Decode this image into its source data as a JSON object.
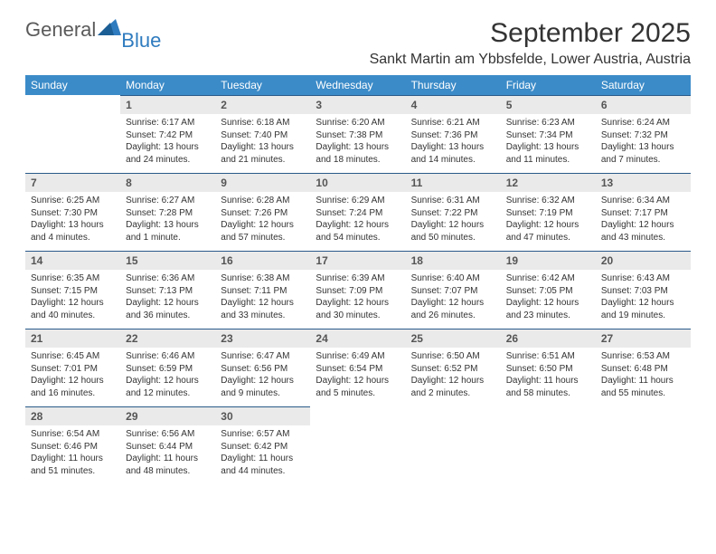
{
  "brand": {
    "general": "General",
    "blue": "Blue"
  },
  "title": "September 2025",
  "location": "Sankt Martin am Ybbsfelde, Lower Austria, Austria",
  "colors": {
    "header_bg": "#3b8bc8",
    "header_text": "#ffffff",
    "daynum_bg": "#eaeaea",
    "daynum_border": "#2a5a8a",
    "brand_gray": "#5a5a5a",
    "brand_blue": "#2f7bbf",
    "page_bg": "#ffffff"
  },
  "day_names": [
    "Sunday",
    "Monday",
    "Tuesday",
    "Wednesday",
    "Thursday",
    "Friday",
    "Saturday"
  ],
  "weeks": [
    [
      {
        "n": "",
        "sr": "",
        "ss": "",
        "dl": ""
      },
      {
        "n": "1",
        "sr": "Sunrise: 6:17 AM",
        "ss": "Sunset: 7:42 PM",
        "dl": "Daylight: 13 hours and 24 minutes."
      },
      {
        "n": "2",
        "sr": "Sunrise: 6:18 AM",
        "ss": "Sunset: 7:40 PM",
        "dl": "Daylight: 13 hours and 21 minutes."
      },
      {
        "n": "3",
        "sr": "Sunrise: 6:20 AM",
        "ss": "Sunset: 7:38 PM",
        "dl": "Daylight: 13 hours and 18 minutes."
      },
      {
        "n": "4",
        "sr": "Sunrise: 6:21 AM",
        "ss": "Sunset: 7:36 PM",
        "dl": "Daylight: 13 hours and 14 minutes."
      },
      {
        "n": "5",
        "sr": "Sunrise: 6:23 AM",
        "ss": "Sunset: 7:34 PM",
        "dl": "Daylight: 13 hours and 11 minutes."
      },
      {
        "n": "6",
        "sr": "Sunrise: 6:24 AM",
        "ss": "Sunset: 7:32 PM",
        "dl": "Daylight: 13 hours and 7 minutes."
      }
    ],
    [
      {
        "n": "7",
        "sr": "Sunrise: 6:25 AM",
        "ss": "Sunset: 7:30 PM",
        "dl": "Daylight: 13 hours and 4 minutes."
      },
      {
        "n": "8",
        "sr": "Sunrise: 6:27 AM",
        "ss": "Sunset: 7:28 PM",
        "dl": "Daylight: 13 hours and 1 minute."
      },
      {
        "n": "9",
        "sr": "Sunrise: 6:28 AM",
        "ss": "Sunset: 7:26 PM",
        "dl": "Daylight: 12 hours and 57 minutes."
      },
      {
        "n": "10",
        "sr": "Sunrise: 6:29 AM",
        "ss": "Sunset: 7:24 PM",
        "dl": "Daylight: 12 hours and 54 minutes."
      },
      {
        "n": "11",
        "sr": "Sunrise: 6:31 AM",
        "ss": "Sunset: 7:22 PM",
        "dl": "Daylight: 12 hours and 50 minutes."
      },
      {
        "n": "12",
        "sr": "Sunrise: 6:32 AM",
        "ss": "Sunset: 7:19 PM",
        "dl": "Daylight: 12 hours and 47 minutes."
      },
      {
        "n": "13",
        "sr": "Sunrise: 6:34 AM",
        "ss": "Sunset: 7:17 PM",
        "dl": "Daylight: 12 hours and 43 minutes."
      }
    ],
    [
      {
        "n": "14",
        "sr": "Sunrise: 6:35 AM",
        "ss": "Sunset: 7:15 PM",
        "dl": "Daylight: 12 hours and 40 minutes."
      },
      {
        "n": "15",
        "sr": "Sunrise: 6:36 AM",
        "ss": "Sunset: 7:13 PM",
        "dl": "Daylight: 12 hours and 36 minutes."
      },
      {
        "n": "16",
        "sr": "Sunrise: 6:38 AM",
        "ss": "Sunset: 7:11 PM",
        "dl": "Daylight: 12 hours and 33 minutes."
      },
      {
        "n": "17",
        "sr": "Sunrise: 6:39 AM",
        "ss": "Sunset: 7:09 PM",
        "dl": "Daylight: 12 hours and 30 minutes."
      },
      {
        "n": "18",
        "sr": "Sunrise: 6:40 AM",
        "ss": "Sunset: 7:07 PM",
        "dl": "Daylight: 12 hours and 26 minutes."
      },
      {
        "n": "19",
        "sr": "Sunrise: 6:42 AM",
        "ss": "Sunset: 7:05 PM",
        "dl": "Daylight: 12 hours and 23 minutes."
      },
      {
        "n": "20",
        "sr": "Sunrise: 6:43 AM",
        "ss": "Sunset: 7:03 PM",
        "dl": "Daylight: 12 hours and 19 minutes."
      }
    ],
    [
      {
        "n": "21",
        "sr": "Sunrise: 6:45 AM",
        "ss": "Sunset: 7:01 PM",
        "dl": "Daylight: 12 hours and 16 minutes."
      },
      {
        "n": "22",
        "sr": "Sunrise: 6:46 AM",
        "ss": "Sunset: 6:59 PM",
        "dl": "Daylight: 12 hours and 12 minutes."
      },
      {
        "n": "23",
        "sr": "Sunrise: 6:47 AM",
        "ss": "Sunset: 6:56 PM",
        "dl": "Daylight: 12 hours and 9 minutes."
      },
      {
        "n": "24",
        "sr": "Sunrise: 6:49 AM",
        "ss": "Sunset: 6:54 PM",
        "dl": "Daylight: 12 hours and 5 minutes."
      },
      {
        "n": "25",
        "sr": "Sunrise: 6:50 AM",
        "ss": "Sunset: 6:52 PM",
        "dl": "Daylight: 12 hours and 2 minutes."
      },
      {
        "n": "26",
        "sr": "Sunrise: 6:51 AM",
        "ss": "Sunset: 6:50 PM",
        "dl": "Daylight: 11 hours and 58 minutes."
      },
      {
        "n": "27",
        "sr": "Sunrise: 6:53 AM",
        "ss": "Sunset: 6:48 PM",
        "dl": "Daylight: 11 hours and 55 minutes."
      }
    ],
    [
      {
        "n": "28",
        "sr": "Sunrise: 6:54 AM",
        "ss": "Sunset: 6:46 PM",
        "dl": "Daylight: 11 hours and 51 minutes."
      },
      {
        "n": "29",
        "sr": "Sunrise: 6:56 AM",
        "ss": "Sunset: 6:44 PM",
        "dl": "Daylight: 11 hours and 48 minutes."
      },
      {
        "n": "30",
        "sr": "Sunrise: 6:57 AM",
        "ss": "Sunset: 6:42 PM",
        "dl": "Daylight: 11 hours and 44 minutes."
      },
      {
        "n": "",
        "sr": "",
        "ss": "",
        "dl": ""
      },
      {
        "n": "",
        "sr": "",
        "ss": "",
        "dl": ""
      },
      {
        "n": "",
        "sr": "",
        "ss": "",
        "dl": ""
      },
      {
        "n": "",
        "sr": "",
        "ss": "",
        "dl": ""
      }
    ]
  ]
}
